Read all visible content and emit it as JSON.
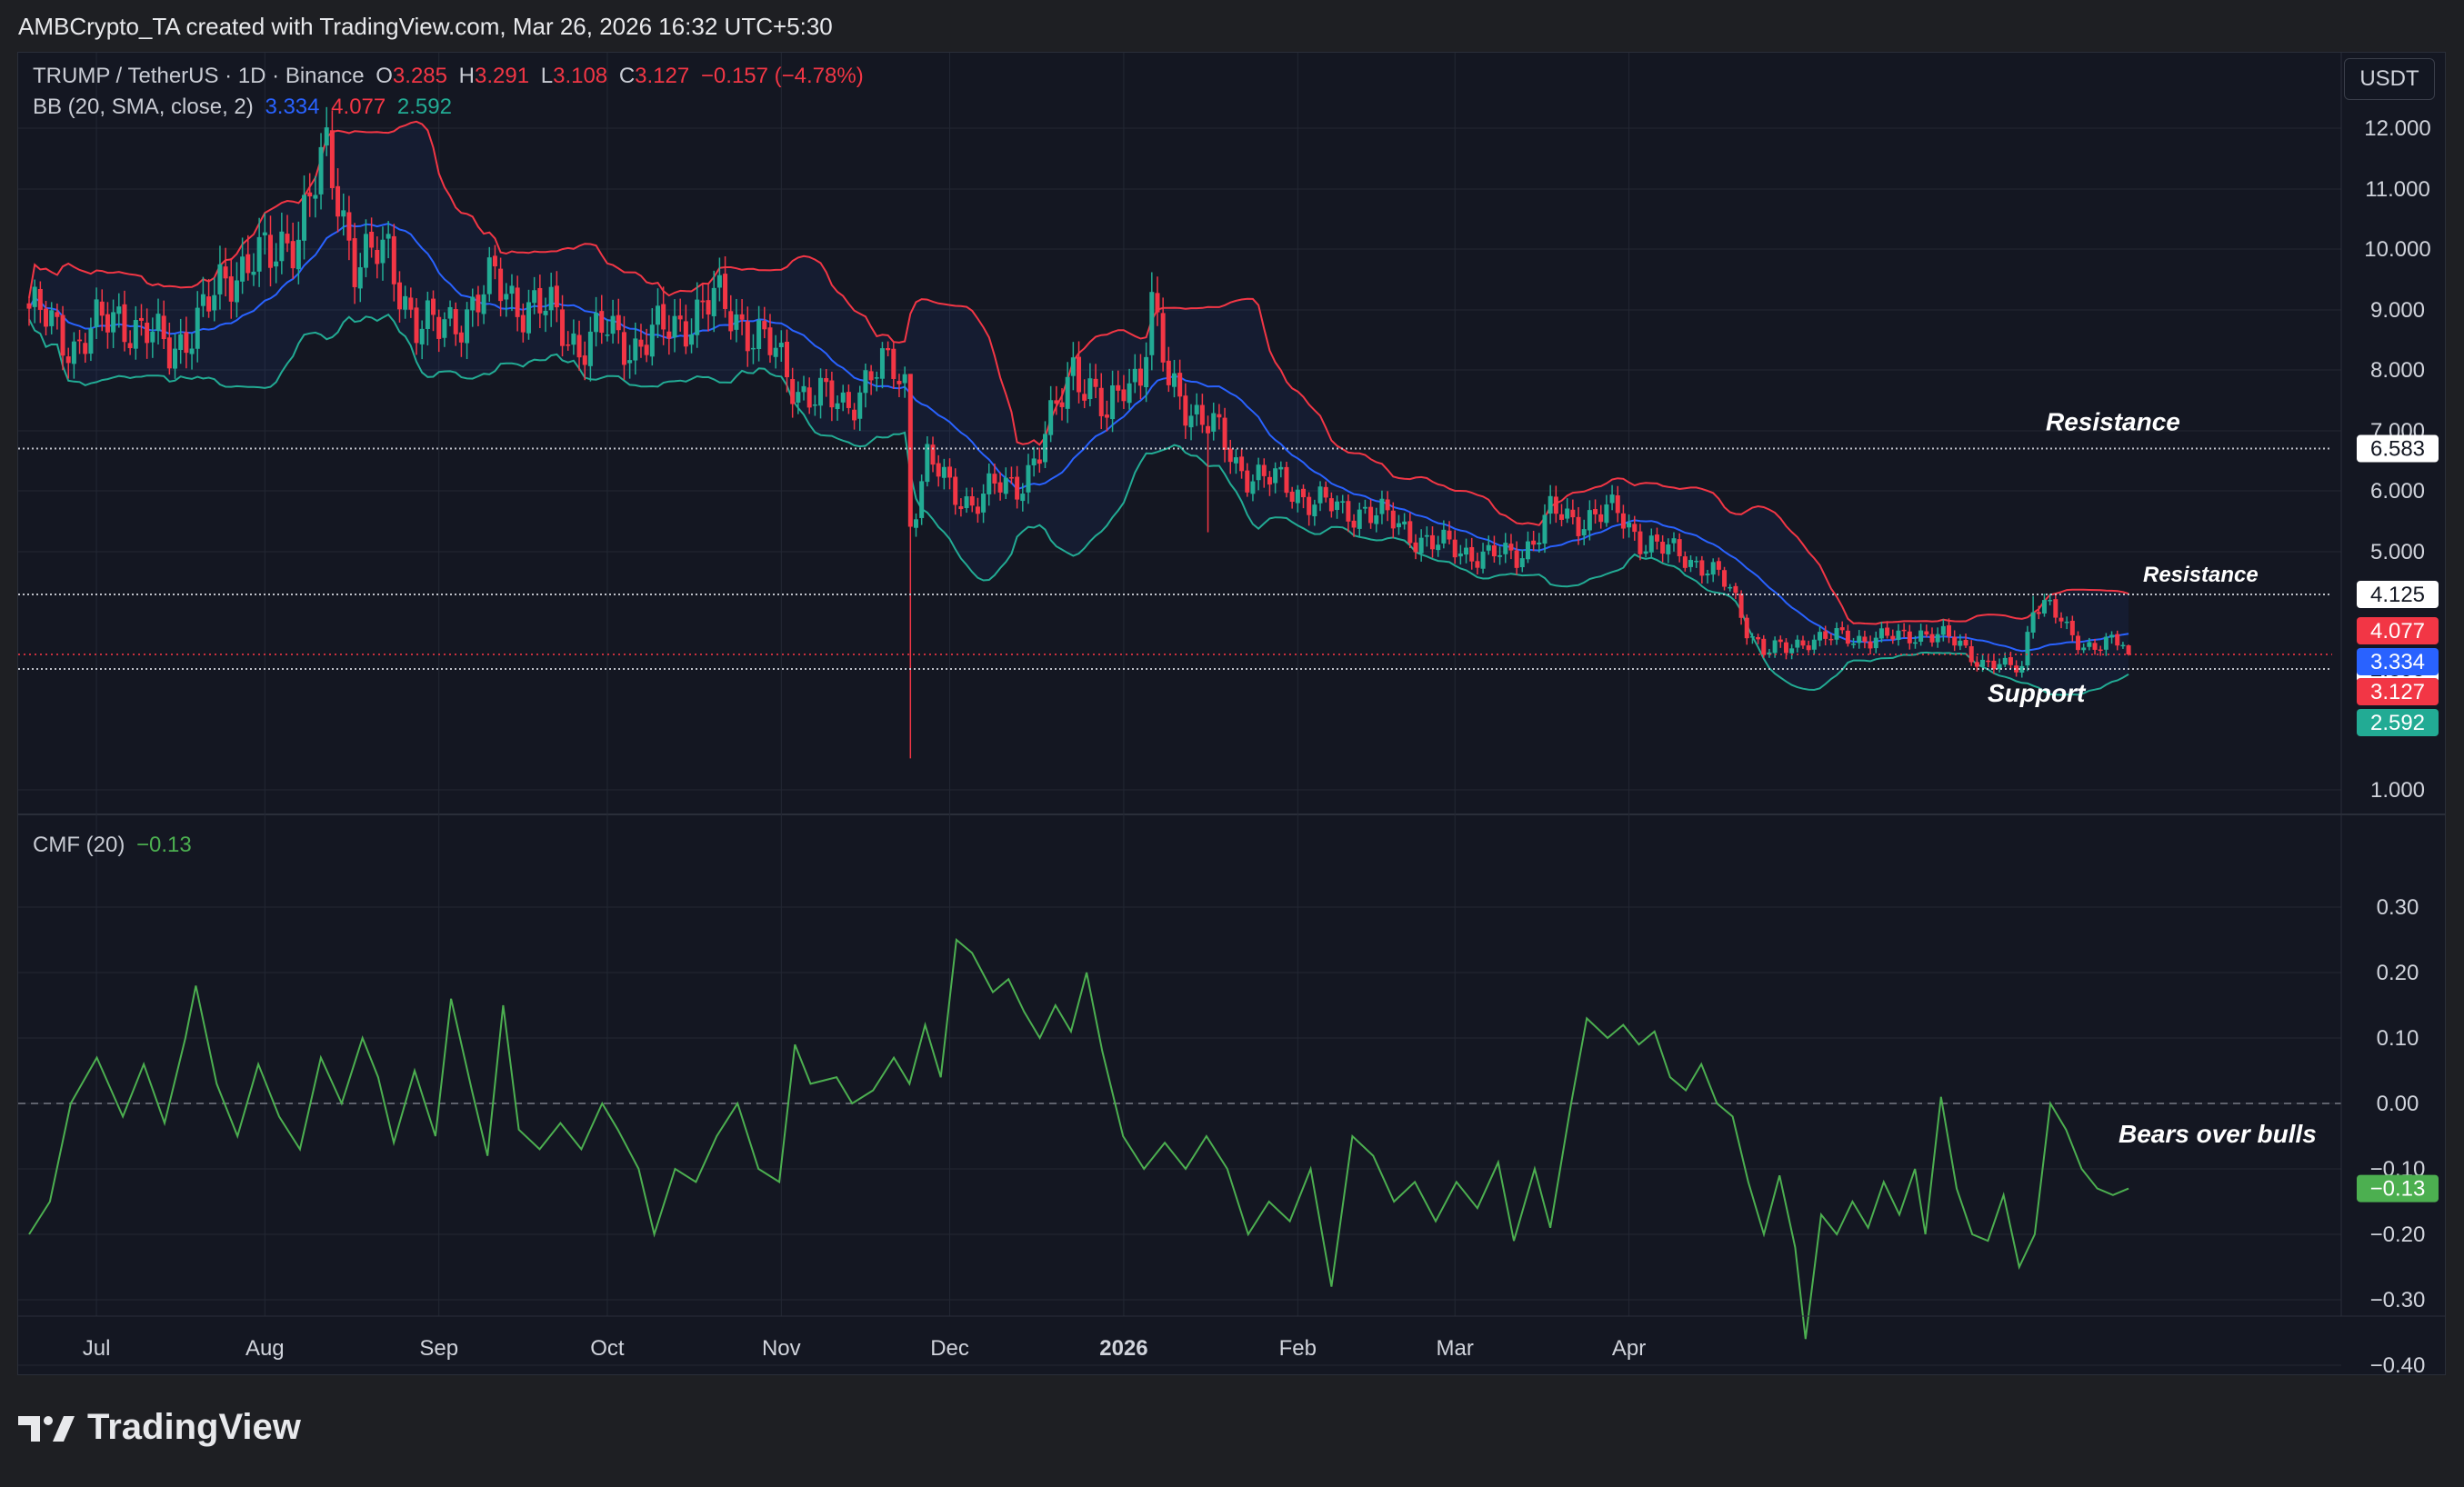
{
  "header": {
    "attribution": "AMBCrypto_TA created with TradingView.com, Mar 26, 2026 16:32 UTC+5:30"
  },
  "currency_button": "USDT",
  "legend": {
    "symbol": "TRUMP / TetherUS · 1D · Binance",
    "open_label": "O",
    "open": "3.285",
    "high_label": "H",
    "high": "3.291",
    "low_label": "L",
    "low": "3.108",
    "close_label": "C",
    "close": "3.127",
    "change": "−0.157 (−4.78%)",
    "bb_label": "BB (20, SMA, close, 2)",
    "bb_basis": "3.334",
    "bb_upper": "4.077",
    "bb_lower": "2.592",
    "cmf_label": "CMF (20)",
    "cmf_value": "−0.13"
  },
  "footer": {
    "brand": "TradingView"
  },
  "colors": {
    "up": "#22ab94",
    "down": "#f23645",
    "basis": "#2962ff",
    "upper": "#f23645",
    "lower": "#22ab94",
    "cmf": "#4caf50",
    "panel_bg": "#141722",
    "grid": "#232733"
  },
  "chart_data": [
    {
      "type": "candlestick",
      "symbol": "TRUMP / TetherUS",
      "x_ticks": [
        "Jul",
        "Aug",
        "Sep",
        "Oct",
        "Nov",
        "Dec",
        "2026",
        "Feb",
        "Mar",
        "Apr"
      ],
      "y_ticks": [
        "12.000",
        "11.000",
        "10.000",
        "9.000",
        "8.000",
        "7.000",
        "6.000",
        "5.000",
        "1.000"
      ],
      "y_tick_values": [
        12,
        11,
        10,
        9,
        8,
        7,
        6,
        5,
        1
      ],
      "key_prices": [
        {
          "price": 6.583,
          "label": "6.583",
          "kind": "resistance"
        },
        {
          "price": 4.125,
          "label": "4.125",
          "kind": "resistance"
        },
        {
          "price": 2.895,
          "label": "2.895",
          "kind": "support"
        },
        {
          "price": 3.127,
          "label": "3.127",
          "kind": "last"
        }
      ],
      "price_badges": [
        {
          "value": "4.077",
          "color": "#f23645"
        },
        {
          "value": "3.334",
          "color": "#2962ff"
        },
        {
          "value": "3.127",
          "color": "#f23645"
        },
        {
          "value": "2.592",
          "color": "#22ab94"
        }
      ],
      "annotations": [
        {
          "text": "Resistance",
          "at": 6.583
        },
        {
          "text": "Resistance",
          "at": 4.125
        },
        {
          "text": "Support",
          "at": 2.895
        }
      ],
      "anchors": [
        {
          "t": 0,
          "c": 8.9
        },
        {
          "t": 8,
          "c": 8.3
        },
        {
          "t": 16,
          "c": 8.8
        },
        {
          "t": 25,
          "c": 8.2
        },
        {
          "t": 28,
          "c": 8.5
        },
        {
          "t": 32,
          "c": 8.9
        },
        {
          "t": 36,
          "c": 9.5
        },
        {
          "t": 40,
          "c": 9.8
        },
        {
          "t": 43,
          "c": 9.6
        },
        {
          "t": 48,
          "c": 10.3
        },
        {
          "t": 50,
          "c": 10.8
        },
        {
          "t": 53,
          "c": 11.3
        },
        {
          "t": 58,
          "c": 9.8
        },
        {
          "t": 64,
          "c": 9.7
        },
        {
          "t": 69,
          "c": 8.7
        },
        {
          "t": 73,
          "c": 8.5
        },
        {
          "t": 78,
          "c": 8.9
        },
        {
          "t": 83,
          "c": 9.3
        },
        {
          "t": 88,
          "c": 9.0
        },
        {
          "t": 93,
          "c": 8.8
        },
        {
          "t": 98,
          "c": 8.3
        },
        {
          "t": 103,
          "c": 8.5
        },
        {
          "t": 108,
          "c": 8.3
        },
        {
          "t": 113,
          "c": 8.5
        },
        {
          "t": 118,
          "c": 8.8
        },
        {
          "t": 122,
          "c": 9.0
        },
        {
          "t": 126,
          "c": 8.8
        },
        {
          "t": 130,
          "c": 8.4
        },
        {
          "t": 133,
          "c": 8.1
        },
        {
          "t": 137,
          "c": 7.6
        },
        {
          "t": 141,
          "c": 7.4
        },
        {
          "t": 145,
          "c": 7.3
        },
        {
          "t": 150,
          "c": 7.8
        },
        {
          "t": 154,
          "c": 7.9
        },
        {
          "t": 156,
          "c": 7.7
        },
        {
          "t": 157,
          "c": 5.4
        },
        {
          "t": 160,
          "c": 6.4
        },
        {
          "t": 164,
          "c": 5.9
        },
        {
          "t": 168,
          "c": 5.7
        },
        {
          "t": 172,
          "c": 5.9
        },
        {
          "t": 176,
          "c": 6.0
        },
        {
          "t": 180,
          "c": 6.5
        },
        {
          "t": 183,
          "c": 7.2
        },
        {
          "t": 186,
          "c": 8.0
        },
        {
          "t": 189,
          "c": 7.6
        },
        {
          "t": 192,
          "c": 7.0
        },
        {
          "t": 195,
          "c": 7.7
        },
        {
          "t": 198,
          "c": 7.9
        },
        {
          "t": 200,
          "c": 8.9
        },
        {
          "t": 203,
          "c": 7.6
        },
        {
          "t": 207,
          "c": 7.3
        },
        {
          "t": 211,
          "c": 6.9
        },
        {
          "t": 215,
          "c": 6.3
        },
        {
          "t": 220,
          "c": 6.1
        },
        {
          "t": 225,
          "c": 5.9
        },
        {
          "t": 230,
          "c": 5.7
        },
        {
          "t": 234,
          "c": 5.5
        },
        {
          "t": 238,
          "c": 5.6
        },
        {
          "t": 242,
          "c": 5.4
        },
        {
          "t": 246,
          "c": 5.2
        },
        {
          "t": 250,
          "c": 5.0
        },
        {
          "t": 255,
          "c": 4.9
        },
        {
          "t": 260,
          "c": 4.8
        },
        {
          "t": 265,
          "c": 4.8
        },
        {
          "t": 268,
          "c": 5.1
        },
        {
          "t": 271,
          "c": 5.5
        },
        {
          "t": 275,
          "c": 5.4
        },
        {
          "t": 279,
          "c": 5.5
        },
        {
          "t": 283,
          "c": 5.5
        },
        {
          "t": 287,
          "c": 5.1
        },
        {
          "t": 291,
          "c": 4.9
        },
        {
          "t": 295,
          "c": 4.8
        },
        {
          "t": 299,
          "c": 4.6
        },
        {
          "t": 303,
          "c": 4.2
        },
        {
          "t": 306,
          "c": 3.6
        },
        {
          "t": 309,
          "c": 3.2
        },
        {
          "t": 313,
          "c": 3.2
        },
        {
          "t": 317,
          "c": 3.4
        },
        {
          "t": 321,
          "c": 3.4
        },
        {
          "t": 325,
          "c": 3.4
        },
        {
          "t": 329,
          "c": 3.4
        },
        {
          "t": 333,
          "c": 3.4
        },
        {
          "t": 337,
          "c": 3.5
        },
        {
          "t": 341,
          "c": 3.4
        },
        {
          "t": 344,
          "c": 3.3
        },
        {
          "t": 348,
          "c": 3.0
        },
        {
          "t": 352,
          "c": 2.9
        },
        {
          "t": 355,
          "c": 2.95
        },
        {
          "t": 357,
          "c": 4.0
        },
        {
          "t": 360,
          "c": 3.9
        },
        {
          "t": 363,
          "c": 3.5
        },
        {
          "t": 366,
          "c": 3.3
        },
        {
          "t": 370,
          "c": 3.3
        },
        {
          "t": 373,
          "c": 3.285
        },
        {
          "t": 374,
          "c": 3.127
        }
      ],
      "spikes": [
        {
          "t": 52,
          "h": 11.8
        },
        {
          "t": 157,
          "l": 1.4,
          "h": 7.7
        },
        {
          "t": 200,
          "h": 9.5
        },
        {
          "t": 210,
          "l": 5.2
        },
        {
          "t": 357,
          "h": 4.1
        }
      ]
    },
    {
      "type": "line",
      "title": "CMF (20)",
      "y_ticks": [
        "0.30",
        "0.20",
        "0.10",
        "0.00",
        "−0.10",
        "−0.20",
        "−0.30",
        "−0.40"
      ],
      "y_tick_values": [
        0.3,
        0.2,
        0.1,
        0.0,
        -0.1,
        -0.2,
        -0.3,
        -0.4
      ],
      "last_value": "−0.13",
      "annotation": "Bears over bulls",
      "anchors": [
        {
          "t": 0,
          "v": -0.2
        },
        {
          "t": 4,
          "v": -0.15
        },
        {
          "t": 8,
          "v": 0.0
        },
        {
          "t": 13,
          "v": 0.07
        },
        {
          "t": 18,
          "v": -0.02
        },
        {
          "t": 22,
          "v": 0.06
        },
        {
          "t": 26,
          "v": -0.03
        },
        {
          "t": 30,
          "v": 0.1
        },
        {
          "t": 32,
          "v": 0.18
        },
        {
          "t": 36,
          "v": 0.03
        },
        {
          "t": 40,
          "v": -0.05
        },
        {
          "t": 44,
          "v": 0.06
        },
        {
          "t": 48,
          "v": -0.02
        },
        {
          "t": 52,
          "v": -0.07
        },
        {
          "t": 56,
          "v": 0.07
        },
        {
          "t": 60,
          "v": 0.0
        },
        {
          "t": 64,
          "v": 0.1
        },
        {
          "t": 67,
          "v": 0.04
        },
        {
          "t": 70,
          "v": -0.06
        },
        {
          "t": 74,
          "v": 0.05
        },
        {
          "t": 78,
          "v": -0.05
        },
        {
          "t": 81,
          "v": 0.16
        },
        {
          "t": 85,
          "v": 0.02
        },
        {
          "t": 88,
          "v": -0.08
        },
        {
          "t": 91,
          "v": 0.15
        },
        {
          "t": 94,
          "v": -0.04
        },
        {
          "t": 98,
          "v": -0.07
        },
        {
          "t": 102,
          "v": -0.03
        },
        {
          "t": 106,
          "v": -0.07
        },
        {
          "t": 110,
          "v": 0.0
        },
        {
          "t": 113,
          "v": -0.04
        },
        {
          "t": 117,
          "v": -0.1
        },
        {
          "t": 120,
          "v": -0.2
        },
        {
          "t": 124,
          "v": -0.1
        },
        {
          "t": 128,
          "v": -0.12
        },
        {
          "t": 132,
          "v": -0.05
        },
        {
          "t": 136,
          "v": 0.0
        },
        {
          "t": 140,
          "v": -0.1
        },
        {
          "t": 144,
          "v": -0.12
        },
        {
          "t": 147,
          "v": 0.09
        },
        {
          "t": 150,
          "v": 0.03
        },
        {
          "t": 155,
          "v": 0.04
        },
        {
          "t": 158,
          "v": 0.0
        },
        {
          "t": 162,
          "v": 0.02
        },
        {
          "t": 166,
          "v": 0.07
        },
        {
          "t": 169,
          "v": 0.03
        },
        {
          "t": 172,
          "v": 0.12
        },
        {
          "t": 175,
          "v": 0.04
        },
        {
          "t": 178,
          "v": 0.25
        },
        {
          "t": 181,
          "v": 0.23
        },
        {
          "t": 185,
          "v": 0.17
        },
        {
          "t": 188,
          "v": 0.19
        },
        {
          "t": 191,
          "v": 0.14
        },
        {
          "t": 194,
          "v": 0.1
        },
        {
          "t": 197,
          "v": 0.15
        },
        {
          "t": 200,
          "v": 0.11
        },
        {
          "t": 203,
          "v": 0.2
        },
        {
          "t": 206,
          "v": 0.08
        },
        {
          "t": 210,
          "v": -0.05
        },
        {
          "t": 214,
          "v": -0.1
        },
        {
          "t": 218,
          "v": -0.06
        },
        {
          "t": 222,
          "v": -0.1
        },
        {
          "t": 226,
          "v": -0.05
        },
        {
          "t": 230,
          "v": -0.1
        },
        {
          "t": 234,
          "v": -0.2
        },
        {
          "t": 238,
          "v": -0.15
        },
        {
          "t": 242,
          "v": -0.18
        },
        {
          "t": 246,
          "v": -0.1
        },
        {
          "t": 250,
          "v": -0.28
        },
        {
          "t": 254,
          "v": -0.05
        },
        {
          "t": 258,
          "v": -0.08
        },
        {
          "t": 262,
          "v": -0.15
        },
        {
          "t": 266,
          "v": -0.12
        },
        {
          "t": 270,
          "v": -0.18
        },
        {
          "t": 274,
          "v": -0.12
        },
        {
          "t": 278,
          "v": -0.16
        },
        {
          "t": 282,
          "v": -0.09
        },
        {
          "t": 285,
          "v": -0.21
        },
        {
          "t": 289,
          "v": -0.1
        },
        {
          "t": 292,
          "v": -0.19
        },
        {
          "t": 296,
          "v": 0.0
        },
        {
          "t": 299,
          "v": 0.13
        },
        {
          "t": 303,
          "v": 0.1
        },
        {
          "t": 306,
          "v": 0.12
        },
        {
          "t": 309,
          "v": 0.09
        },
        {
          "t": 312,
          "v": 0.11
        },
        {
          "t": 315,
          "v": 0.04
        },
        {
          "t": 318,
          "v": 0.02
        },
        {
          "t": 321,
          "v": 0.06
        },
        {
          "t": 324,
          "v": 0.0
        },
        {
          "t": 327,
          "v": -0.02
        },
        {
          "t": 330,
          "v": -0.12
        },
        {
          "t": 333,
          "v": -0.2
        },
        {
          "t": 336,
          "v": -0.11
        },
        {
          "t": 339,
          "v": -0.22
        },
        {
          "t": 341,
          "v": -0.36
        },
        {
          "t": 344,
          "v": -0.17
        },
        {
          "t": 347,
          "v": -0.2
        },
        {
          "t": 350,
          "v": -0.15
        },
        {
          "t": 353,
          "v": -0.19
        },
        {
          "t": 356,
          "v": -0.12
        },
        {
          "t": 359,
          "v": -0.17
        },
        {
          "t": 362,
          "v": -0.1
        },
        {
          "t": 364,
          "v": -0.2
        },
        {
          "t": 367,
          "v": 0.01
        },
        {
          "t": 370,
          "v": -0.13
        },
        {
          "t": 373,
          "v": -0.2
        },
        {
          "t": 376,
          "v": -0.21
        },
        {
          "t": 379,
          "v": -0.14
        },
        {
          "t": 382,
          "v": -0.25
        },
        {
          "t": 385,
          "v": -0.2
        },
        {
          "t": 388,
          "v": -0.0
        },
        {
          "t": 391,
          "v": -0.04
        },
        {
          "t": 394,
          "v": -0.1
        },
        {
          "t": 397,
          "v": -0.13
        },
        {
          "t": 400,
          "v": -0.14
        },
        {
          "t": 403,
          "v": -0.13
        }
      ]
    }
  ]
}
